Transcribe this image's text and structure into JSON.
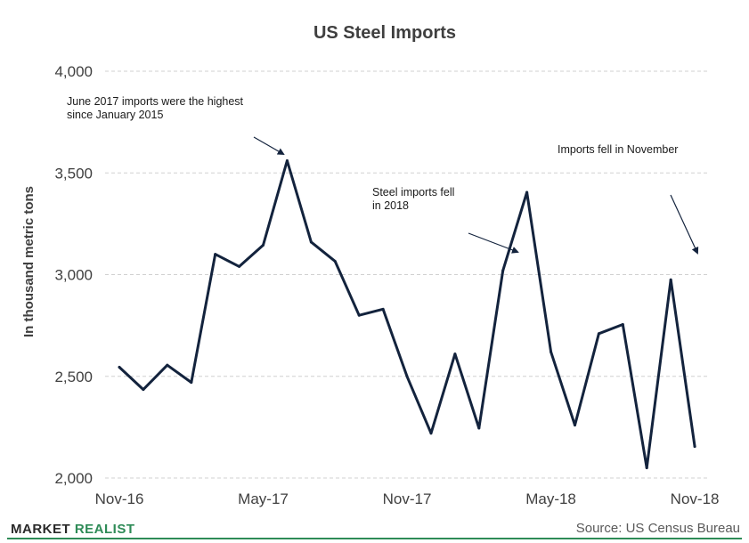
{
  "chart_data": {
    "type": "line",
    "title": "US Steel Imports",
    "ylabel": "In thousand metric tons",
    "xlabel": "",
    "ylim": [
      2000,
      4000
    ],
    "yticks": [
      "2,000",
      "2,500",
      "3,000",
      "3,500",
      "4,000"
    ],
    "ytick_values": [
      2000,
      2500,
      3000,
      3500,
      4000
    ],
    "x_tick_labels": [
      "Nov-16",
      "May-17",
      "Nov-17",
      "May-18",
      "Nov-18"
    ],
    "x_tick_index": [
      0,
      6,
      12,
      18,
      24
    ],
    "x": [
      "Nov-16",
      "Dec-16",
      "Jan-17",
      "Feb-17",
      "Mar-17",
      "Apr-17",
      "May-17",
      "Jun-17",
      "Jul-17",
      "Aug-17",
      "Sep-17",
      "Oct-17",
      "Nov-17",
      "Dec-17",
      "Jan-18",
      "Feb-18",
      "Mar-18",
      "Apr-18",
      "May-18",
      "Jun-18",
      "Jul-18",
      "Aug-18",
      "Sep-18",
      "Oct-18",
      "Nov-18"
    ],
    "series": [
      {
        "values": [
          2545,
          2435,
          2555,
          2470,
          3100,
          3040,
          3145,
          3560,
          3160,
          3065,
          2800,
          2830,
          2500,
          2220,
          2610,
          2245,
          3020,
          3405,
          2620,
          2260,
          2710,
          2755,
          2050,
          2975,
          2155
        ]
      }
    ],
    "grid": true,
    "line_color": "#13233d",
    "annotations": [
      {
        "text": [
          "June 2017 imports were the highest",
          "since January 2015"
        ],
        "points_to_index": 7
      },
      {
        "text": [
          "Steel imports fell",
          "in 2018"
        ],
        "points_to_index": 17
      },
      {
        "text": [
          "Imports fell in November"
        ],
        "points_to_index": 24
      }
    ]
  },
  "footer": {
    "brand_main": "MARKET ",
    "brand_accent": "REALIST",
    "source": "Source: US Census Bureau"
  },
  "colors": {
    "accent": "#2e8b57",
    "line": "#13233d"
  }
}
